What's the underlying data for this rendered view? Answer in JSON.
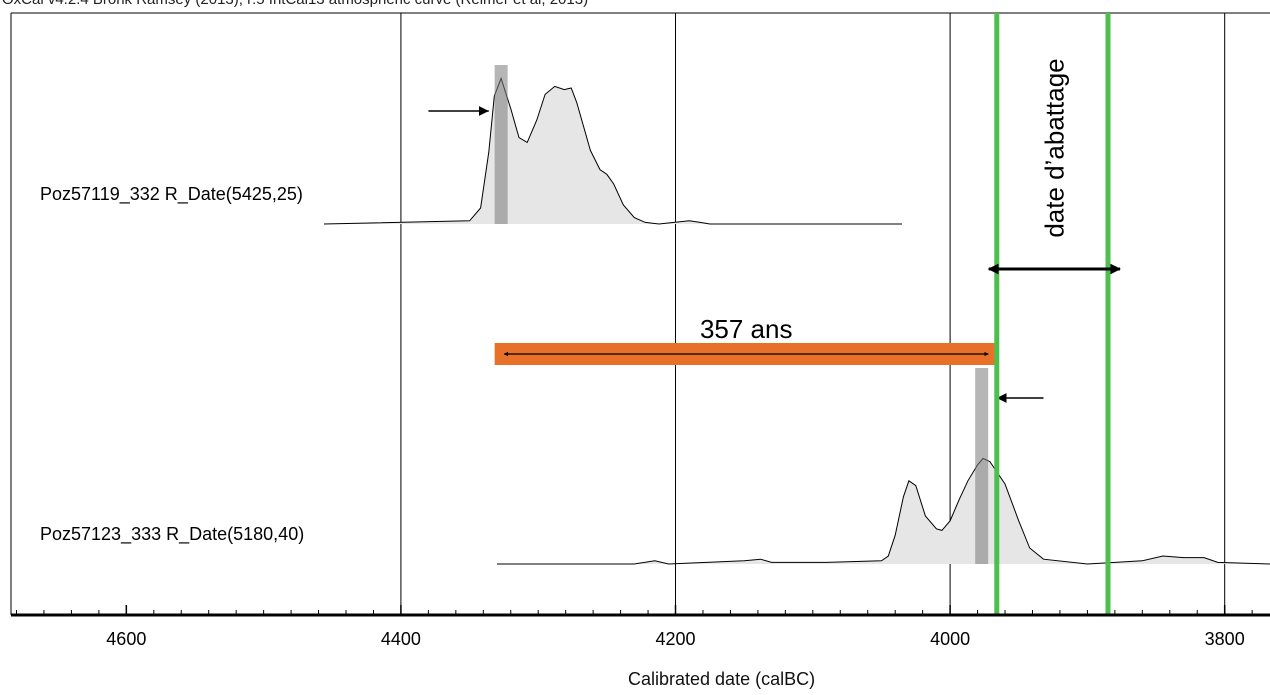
{
  "header_text": "OxCal v4.2.4 Bronk Ramsey (2013); r:5 IntCal13 atmospheric curve (Reimer et al, 2013)",
  "chart_data": {
    "type": "area",
    "title": "",
    "xlabel": "Calibrated date (calBC)",
    "ylabel": "",
    "xlim": [
      4684,
      3767
    ],
    "x_reversed": true,
    "x_ticks": [
      4600,
      4400,
      4200,
      4000,
      3800
    ],
    "x_minor_step": 20,
    "vertical_grid": [
      4400,
      4200,
      4000,
      3800
    ],
    "series": [
      {
        "name": "Poz57119_332 R_Date(5425,25)",
        "band": 0,
        "x": [
          4456,
          4350,
          4342,
          4336,
          4332,
          4327,
          4320,
          4314,
          4308,
          4301,
          4295,
          4288,
          4281,
          4276,
          4272,
          4262,
          4255,
          4250,
          4245,
          4238,
          4230,
          4222,
          4212,
          4190,
          4182,
          4175,
          4035
        ],
        "density": [
          0,
          0.02,
          0.1,
          0.45,
          0.8,
          0.91,
          0.72,
          0.54,
          0.51,
          0.65,
          0.81,
          0.86,
          0.84,
          0.85,
          0.76,
          0.46,
          0.34,
          0.31,
          0.25,
          0.12,
          0.04,
          0.01,
          0,
          0.02,
          0.01,
          0,
          0
        ]
      },
      {
        "name": "Poz57123_333 R_Date(5180,40)",
        "band": 1,
        "x": [
          4330,
          4230,
          4215,
          4205,
          4150,
          4138,
          4130,
          4090,
          4050,
          4045,
          4040,
          4034,
          4030,
          4025,
          4018,
          4010,
          4006,
          4000,
          3993,
          3987,
          3980,
          3976,
          3971,
          3960,
          3950,
          3942,
          3932,
          3900,
          3860,
          3845,
          3830,
          3815,
          3805,
          3767
        ],
        "density": [
          0,
          0,
          0.02,
          0,
          0.02,
          0.03,
          0.01,
          0.01,
          0.02,
          0.05,
          0.18,
          0.42,
          0.52,
          0.49,
          0.3,
          0.22,
          0.21,
          0.27,
          0.41,
          0.52,
          0.62,
          0.66,
          0.64,
          0.5,
          0.27,
          0.1,
          0.03,
          0,
          0.02,
          0.05,
          0.04,
          0.04,
          0.01,
          0
        ]
      }
    ],
    "grey_markers": [
      4327,
      3977
    ],
    "marker_arrows": [
      {
        "x_from": 4380,
        "x_to": 4336,
        "band": 0
      },
      {
        "x_from": 3932,
        "x_to": 3966,
        "band": 1
      }
    ],
    "interval": {
      "from": 4327,
      "to": 3970,
      "label": "357 ans",
      "color": "#e87029"
    },
    "felling": {
      "lines": [
        3966,
        3885
      ],
      "label": "date d’abattage",
      "color": "#4cbf4c"
    }
  }
}
